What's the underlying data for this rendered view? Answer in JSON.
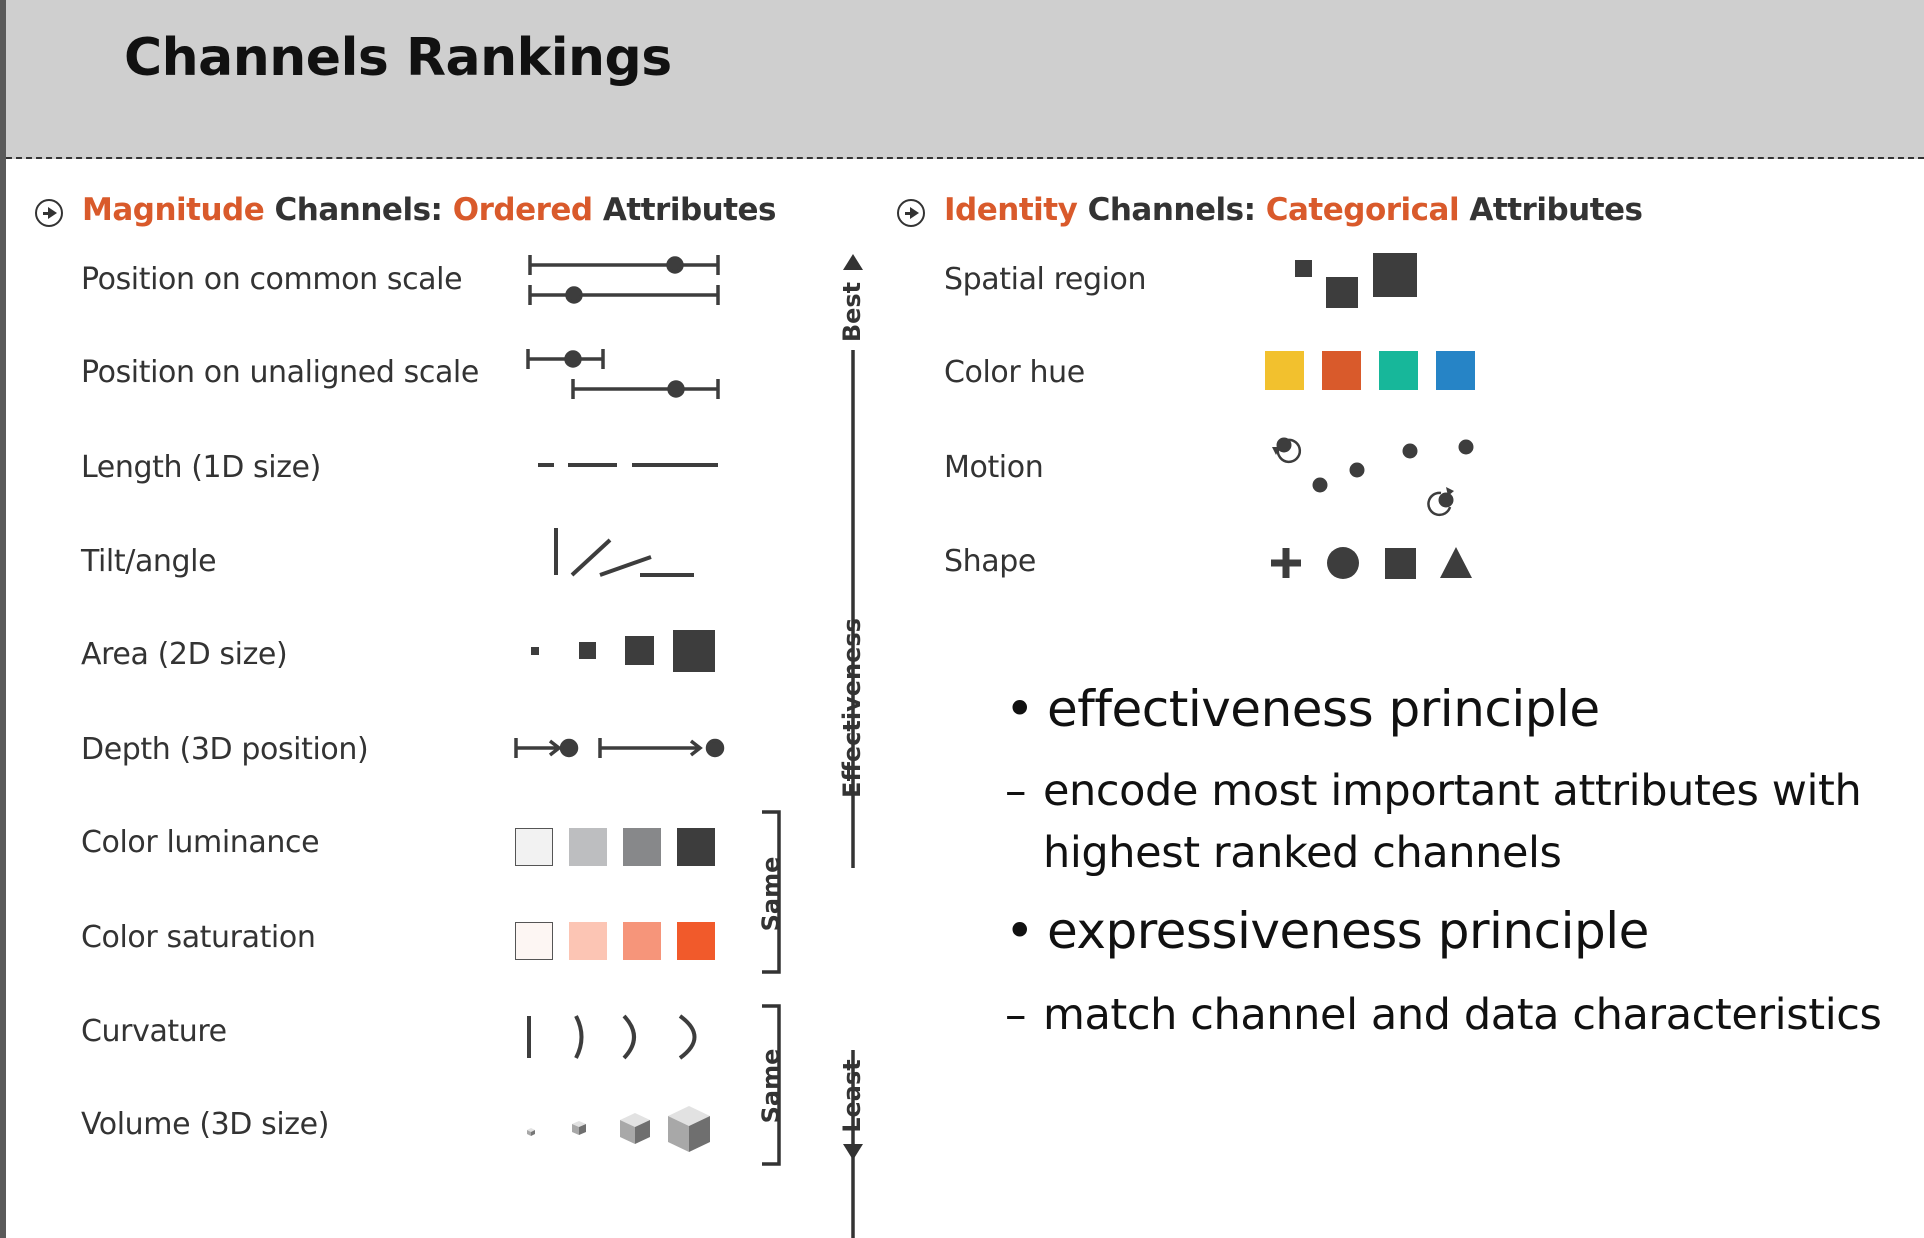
{
  "header": {
    "title": "Channels Rankings"
  },
  "magnitude": {
    "heading": {
      "w1": "Magnitude",
      "w2": " Channels: ",
      "w3": "Ordered",
      "w4": " Attributes"
    },
    "rows": [
      "Position on common scale",
      "Position on unaligned scale",
      "Length (1D size)",
      "Tilt/angle",
      "Area (2D size)",
      "Depth (3D position)",
      "Color luminance",
      "Color saturation",
      "Curvature",
      "Volume (3D size)"
    ],
    "luminance_colors": [
      "#f2f2f2",
      "#bdbec0",
      "#87888a",
      "#3d3d3d"
    ],
    "saturation_colors": [
      "#fdf6f3",
      "#fcc5b4",
      "#f6957a",
      "#f15a2b"
    ]
  },
  "identity": {
    "heading": {
      "w1": "Identity",
      "w2": " Channels: ",
      "w3": "Categorical",
      "w4": " Attributes"
    },
    "rows": [
      "Spatial region",
      "Color hue",
      "Motion",
      "Shape"
    ],
    "hue_colors": [
      "#f2c12e",
      "#d95a2b",
      "#17b79a",
      "#2684c6"
    ],
    "shape_icons": [
      "plus-icon",
      "circle-icon",
      "square-icon",
      "triangle-icon"
    ]
  },
  "effectiveness_axis": {
    "best": "Best",
    "middle": "Effectiveness",
    "least": "Least",
    "same": "Same"
  },
  "principles": [
    {
      "title": "effectiveness principle",
      "detail": [
        "encode most important attributes with",
        "highest ranked channels"
      ]
    },
    {
      "title": "expressiveness principle",
      "detail": [
        "match channel and data characteristics"
      ]
    }
  ],
  "bullet_char": "•",
  "dash_char": "–"
}
